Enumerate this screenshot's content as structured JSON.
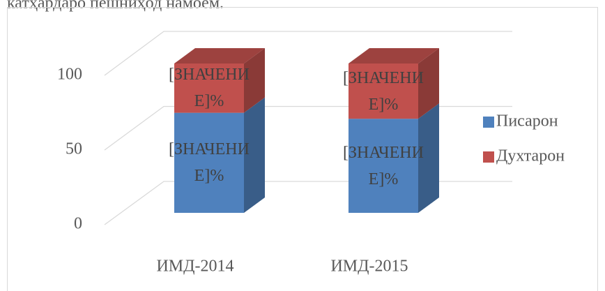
{
  "caption": "катҳардаро пешниҳод намоем.",
  "chart_data": {
    "type": "bar3d_stacked",
    "categories": [
      "ИМД-2014",
      "ИМД-2015"
    ],
    "series": [
      {
        "name": "Писарон",
        "color": "#4f81bd",
        "values": [
          67,
          63
        ],
        "value_labels": [
          "[ЗНАЧЕНИЕ]%",
          "[ЗНАЧЕНИЕ]%"
        ]
      },
      {
        "name": "Духтарон",
        "color": "#c0504d",
        "values": [
          33,
          37
        ],
        "value_labels": [
          "[ЗНАЧЕНИЕ]%",
          "[ЗНАЧЕНИЕ]%"
        ]
      }
    ],
    "ylim": [
      0,
      100
    ],
    "yticks": [
      0,
      50,
      100
    ],
    "grid": true,
    "legend": "right"
  }
}
